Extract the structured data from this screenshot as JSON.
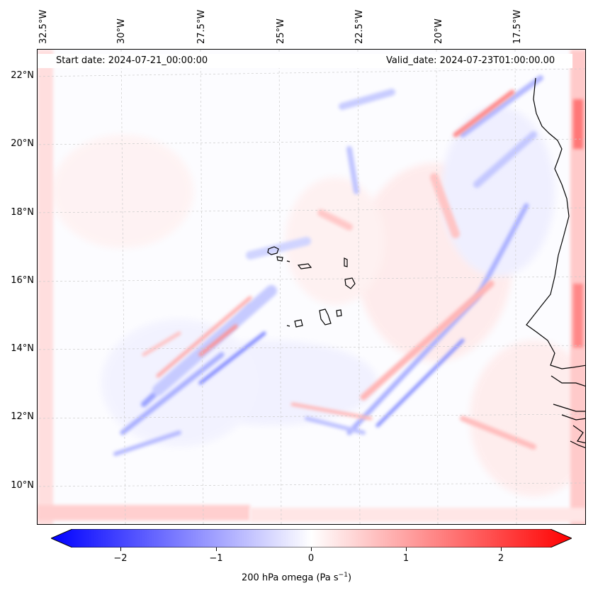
{
  "map": {
    "start_date": "Start date: 2024-07-21_00:00:00",
    "valid_date": "Valid_date: 2024-07-23T01:00:00.00",
    "lon_labels": [
      "32.5°W",
      "30°W",
      "27.5°W",
      "25°W",
      "22.5°W",
      "20°W",
      "17.5°W"
    ],
    "lat_labels": [
      "22°N",
      "20°N",
      "18°N",
      "16°N",
      "14°N",
      "12°N",
      "10°N"
    ],
    "field": "200 hPa omega",
    "colors": {
      "negative": "#0000ff",
      "zero": "#ffffff",
      "positive": "#ff0000",
      "coast": "#000000"
    }
  },
  "colorbar": {
    "ticks": [
      "−2",
      "−1",
      "0",
      "1",
      "2"
    ],
    "label_main": "200 hPa omega (Pa s",
    "label_sup": "−1",
    "label_end": ")",
    "range": [
      -2.6,
      2.6
    ]
  }
}
